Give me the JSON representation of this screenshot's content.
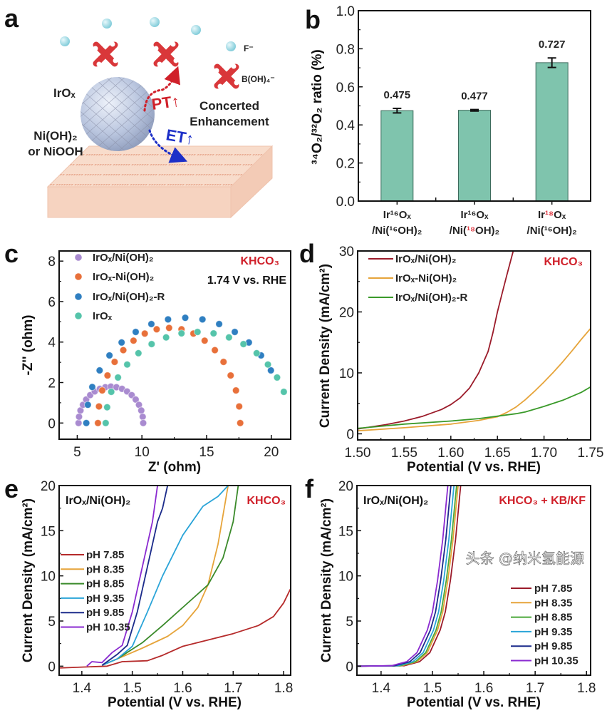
{
  "figure": {
    "watermark": "头条 @纳米氢能源"
  },
  "panel_a": {
    "letter": "a",
    "labels": {
      "irox": "IrOₓ",
      "substrate": "Ni(OH)₂",
      "substrate_alt": "or NiOOH",
      "pt": "PT↑",
      "et": "ET↑",
      "concerted": "Concerted",
      "enhancement": "Enhancement",
      "fluoride": "F⁻",
      "borate": "B(OH)₄⁻"
    },
    "colors": {
      "sphere": "#b9c6e0",
      "slab": "#f8dccb",
      "ion": "#9fd8e4",
      "molecule": "#d9373a",
      "pt": "#d0202a",
      "et": "#1c2fc8"
    }
  },
  "chart_data": [
    {
      "panel": "b",
      "type": "bar",
      "categories": [
        [
          "Ir¹⁶Oₓ",
          "/Ni(¹⁶OH)₂"
        ],
        [
          "Ir¹⁶Oₓ",
          "/Ni(¹⁸OH)₂"
        ],
        [
          "Ir¹⁸Oₓ",
          "/Ni(¹⁶OH)₂"
        ]
      ],
      "values": [
        0.475,
        0.477,
        0.727
      ],
      "errors": [
        0.012,
        0.004,
        0.025
      ],
      "data_labels": [
        "0.475",
        "0.477",
        "0.727"
      ],
      "ylabel": "³⁴O₂/³²O₂ ratio (%)",
      "xlabel": "",
      "ylim": [
        0,
        1.0
      ],
      "yticks": [
        0,
        0.2,
        0.4,
        0.6,
        0.8,
        1.0
      ],
      "ytick_labels": [
        "0.0",
        "0.2",
        "0.4",
        "0.6",
        "0.8",
        "1.0"
      ],
      "bar_color": "#7fc4ad",
      "highlight_color": "#e0404a"
    },
    {
      "panel": "c",
      "type": "scatter",
      "xlabel": "Z' (ohm)",
      "ylabel": "-Z'' (ohm)",
      "xlim": [
        3.6,
        21.5
      ],
      "ylim": [
        -0.8,
        8.5
      ],
      "xticks": [
        5,
        10,
        15,
        20
      ],
      "xtick_labels": [
        "5",
        "10",
        "15",
        "20"
      ],
      "yticks": [
        0,
        2,
        4,
        6,
        8
      ],
      "ytick_labels": [
        "0",
        "2",
        "4",
        "6",
        "8"
      ],
      "annotations": [
        {
          "text": "KHCO₃",
          "color": "#d0202a"
        },
        {
          "text": "1.74 V vs. RHE",
          "color": "#111111"
        }
      ],
      "series": [
        {
          "name": "IrOₓ/Ni(OH)₂",
          "color": "#a98bd0",
          "x": [
            5.1,
            5.14,
            5.25,
            5.44,
            5.69,
            6.0,
            6.35,
            6.75,
            7.17,
            7.6,
            8.03,
            8.46,
            8.85,
            9.21,
            9.52,
            9.77,
            9.95,
            10.06,
            10.1
          ],
          "y": [
            0,
            0.31,
            0.62,
            0.9,
            1.16,
            1.38,
            1.56,
            1.69,
            1.77,
            1.8,
            1.77,
            1.69,
            1.56,
            1.38,
            1.16,
            0.9,
            0.62,
            0.31,
            0
          ]
        },
        {
          "name": "IrOₓ-Ni(OH)₂",
          "color": "#e8703a",
          "x": [
            6.6,
            6.68,
            6.93,
            7.34,
            7.89,
            8.56,
            9.35,
            10.22,
            11.14,
            12.1,
            13.06,
            13.98,
            14.85,
            15.64,
            16.31,
            16.86,
            17.27,
            17.52,
            17.6
          ],
          "y": [
            0,
            0.82,
            1.61,
            2.35,
            3.02,
            3.6,
            4.07,
            4.42,
            4.63,
            4.7,
            4.63,
            4.42,
            4.07,
            3.6,
            3.02,
            2.35,
            1.61,
            0.82,
            0
          ]
        },
        {
          "name": "IrOₓ/Ni(OH)₂-R",
          "color": "#2f7fc1",
          "x": [
            5.7,
            5.82,
            6.16,
            6.73,
            7.49,
            8.43,
            9.52,
            10.73,
            12.02,
            13.35,
            14.68,
            15.97,
            17.18,
            18.27,
            19.21,
            19.97
          ],
          "y": [
            0,
            0.9,
            1.78,
            2.6,
            3.34,
            3.98,
            4.5,
            4.89,
            5.12,
            5.2,
            5.12,
            4.89,
            4.5,
            3.98,
            3.34,
            2.6
          ]
        },
        {
          "name": "IrOₓ",
          "color": "#55c4aa",
          "x": [
            7.2,
            7.31,
            7.63,
            8.15,
            8.86,
            9.73,
            10.75,
            11.87,
            13.06,
            14.3,
            15.54,
            16.73,
            17.85,
            18.87,
            19.74,
            20.45,
            20.97
          ],
          "y": [
            0,
            0.78,
            1.54,
            2.25,
            2.89,
            3.45,
            3.9,
            4.23,
            4.43,
            4.5,
            4.43,
            4.23,
            3.9,
            3.45,
            2.89,
            2.25,
            1.54
          ]
        }
      ]
    },
    {
      "panel": "d",
      "type": "line",
      "xlabel": "Potential (V vs. RHE)",
      "ylabel": "Current Density (mA/cm²)",
      "xlim": [
        1.5,
        1.75
      ],
      "ylim": [
        -1,
        30
      ],
      "xticks": [
        1.5,
        1.55,
        1.6,
        1.65,
        1.7,
        1.75
      ],
      "xtick_labels": [
        "1.50",
        "1.55",
        "1.60",
        "1.65",
        "1.70",
        "1.75"
      ],
      "yticks": [
        0,
        10,
        20,
        30
      ],
      "ytick_labels": [
        "0",
        "10",
        "20",
        "30"
      ],
      "annotations": [
        {
          "text": "KHCO₃",
          "color": "#d0202a"
        }
      ],
      "series": [
        {
          "name": "IrOₓ/Ni(OH)₂",
          "color": "#9b1b2a",
          "x": [
            1.5,
            1.53,
            1.55,
            1.57,
            1.59,
            1.6,
            1.61,
            1.62,
            1.63,
            1.64,
            1.645,
            1.65,
            1.655,
            1.66,
            1.667
          ],
          "y": [
            0.8,
            1.5,
            2.1,
            2.9,
            4.0,
            4.8,
            5.9,
            7.5,
            10,
            13.5,
            16.5,
            20,
            23,
            26,
            30
          ]
        },
        {
          "name": "IrOₓ-Ni(OH)₂",
          "color": "#e6a43a",
          "x": [
            1.5,
            1.55,
            1.6,
            1.63,
            1.65,
            1.66,
            1.67,
            1.68,
            1.69,
            1.7,
            1.71,
            1.72,
            1.73,
            1.74,
            1.75
          ],
          "y": [
            0.5,
            1.0,
            1.6,
            2.2,
            2.8,
            3.5,
            4.4,
            5.6,
            7.0,
            8.5,
            10.1,
            11.8,
            13.6,
            15.5,
            17.3
          ]
        },
        {
          "name": "IrOₓ/Ni(OH)₂-R",
          "color": "#3a9a2a",
          "x": [
            1.5,
            1.55,
            1.6,
            1.63,
            1.65,
            1.67,
            1.68,
            1.7,
            1.72,
            1.74,
            1.75
          ],
          "y": [
            0.9,
            1.6,
            2.1,
            2.5,
            2.9,
            3.3,
            3.6,
            4.5,
            5.5,
            6.8,
            7.7
          ]
        }
      ]
    },
    {
      "panel": "e",
      "type": "line",
      "xlabel": "Potential (V vs. RHE)",
      "ylabel": "Current Density (mA/cm²)",
      "xlim": [
        1.355,
        1.814
      ],
      "ylim": [
        -1,
        20
      ],
      "xticks": [
        1.4,
        1.5,
        1.6,
        1.7,
        1.8
      ],
      "xtick_labels": [
        "1.4",
        "1.5",
        "1.6",
        "1.7",
        "1.8"
      ],
      "yticks": [
        0,
        5,
        10,
        15,
        20
      ],
      "ytick_labels": [
        "0",
        "5",
        "10",
        "15",
        "20"
      ],
      "annotations": [
        {
          "text": "IrOₓ/Ni(OH)₂",
          "color": "#111111"
        },
        {
          "text": "KHCO₃",
          "color": "#d0202a"
        }
      ],
      "series": [
        {
          "name": "pH 7.85",
          "color": "#b52a2a",
          "x": [
            1.355,
            1.45,
            1.48,
            1.53,
            1.56,
            1.6,
            1.65,
            1.7,
            1.75,
            1.78,
            1.8,
            1.814
          ],
          "y": [
            -0.2,
            0,
            0.5,
            0.6,
            1.2,
            2.2,
            2.9,
            3.6,
            4.5,
            5.5,
            7.0,
            8.6
          ]
        },
        {
          "name": "pH 8.35",
          "color": "#e6a43a",
          "x": [
            1.44,
            1.47,
            1.52,
            1.57,
            1.6,
            1.63,
            1.65,
            1.67,
            1.69
          ],
          "y": [
            0.1,
            0.8,
            2.0,
            3.3,
            4.5,
            6.5,
            9.0,
            13.5,
            20
          ]
        },
        {
          "name": "pH 8.85",
          "color": "#3a8a2a",
          "x": [
            1.44,
            1.47,
            1.52,
            1.56,
            1.6,
            1.65,
            1.68,
            1.7,
            1.71
          ],
          "y": [
            0.1,
            0.8,
            2.6,
            4.5,
            6.5,
            9.0,
            12,
            16,
            20
          ]
        },
        {
          "name": "pH 9.35",
          "color": "#2aa4d8",
          "x": [
            1.44,
            1.47,
            1.5,
            1.53,
            1.56,
            1.6,
            1.64,
            1.67,
            1.69
          ],
          "y": [
            0.1,
            0.8,
            2.2,
            6.0,
            10,
            14.5,
            17.7,
            18.8,
            20
          ]
        },
        {
          "name": "pH 9.85",
          "color": "#1a2a8a",
          "x": [
            1.44,
            1.47,
            1.49,
            1.51,
            1.53,
            1.55,
            1.56,
            1.57
          ],
          "y": [
            0.1,
            1.3,
            2.3,
            6.0,
            11,
            16,
            17.5,
            20
          ]
        },
        {
          "name": "pH 10.35",
          "color": "#8a2ad0",
          "x": [
            1.41,
            1.42,
            1.44,
            1.46,
            1.48,
            1.5,
            1.52,
            1.54,
            1.55
          ],
          "y": [
            0,
            0.5,
            0.4,
            1.5,
            2.3,
            6.0,
            11,
            16,
            20
          ]
        }
      ]
    },
    {
      "panel": "f",
      "type": "line",
      "xlabel": "Potential (V vs. RHE)",
      "ylabel": "Current Density (mA/cm²)",
      "xlim": [
        1.353,
        1.808
      ],
      "ylim": [
        -1,
        20
      ],
      "xticks": [
        1.4,
        1.5,
        1.6,
        1.7,
        1.8
      ],
      "xtick_labels": [
        "1.4",
        "1.5",
        "1.6",
        "1.7",
        "1.8"
      ],
      "yticks": [
        0,
        5,
        10,
        15,
        20
      ],
      "ytick_labels": [
        "0",
        "5",
        "10",
        "15",
        "20"
      ],
      "annotations": [
        {
          "text": "IrOₓ/Ni(OH)₂",
          "color": "#111111"
        },
        {
          "text": "KHCO₃ + KB/KF",
          "color": "#d0202a"
        }
      ],
      "series": [
        {
          "name": "pH 7.85",
          "color": "#9b1b2a",
          "x": [
            1.353,
            1.445,
            1.475,
            1.495,
            1.515,
            1.525,
            1.535,
            1.545,
            1.555
          ],
          "y": [
            0,
            0.05,
            0.5,
            1.5,
            4.0,
            6.0,
            9.5,
            14,
            20
          ]
        },
        {
          "name": "pH 8.35",
          "color": "#e6a43a",
          "x": [
            1.353,
            1.44,
            1.47,
            1.49,
            1.51,
            1.52,
            1.53,
            1.54,
            1.55
          ],
          "y": [
            0,
            0.05,
            0.5,
            1.5,
            4.0,
            6.0,
            9.5,
            14,
            20
          ]
        },
        {
          "name": "pH 8.85",
          "color": "#4aa83a",
          "x": [
            1.353,
            1.437,
            1.467,
            1.487,
            1.507,
            1.517,
            1.527,
            1.537,
            1.547
          ],
          "y": [
            0,
            0.05,
            0.5,
            1.5,
            4.0,
            6.0,
            9.5,
            14,
            20
          ]
        },
        {
          "name": "pH 9.35",
          "color": "#2aa4d8",
          "x": [
            1.353,
            1.432,
            1.462,
            1.482,
            1.502,
            1.512,
            1.522,
            1.532,
            1.542
          ],
          "y": [
            0,
            0.05,
            0.5,
            1.5,
            4.0,
            6.0,
            9.5,
            14,
            20
          ]
        },
        {
          "name": "pH 9.85",
          "color": "#1a2a8a",
          "x": [
            1.353,
            1.426,
            1.456,
            1.476,
            1.496,
            1.506,
            1.516,
            1.526,
            1.536
          ],
          "y": [
            0,
            0.05,
            0.5,
            1.5,
            4.0,
            6.0,
            9.5,
            14,
            20
          ]
        },
        {
          "name": "pH 10.35",
          "color": "#8a2ad0",
          "x": [
            1.353,
            1.42,
            1.45,
            1.47,
            1.49,
            1.5,
            1.51,
            1.52,
            1.53
          ],
          "y": [
            0,
            0.05,
            0.5,
            1.5,
            4.0,
            6.0,
            9.5,
            14,
            20
          ]
        }
      ]
    }
  ]
}
